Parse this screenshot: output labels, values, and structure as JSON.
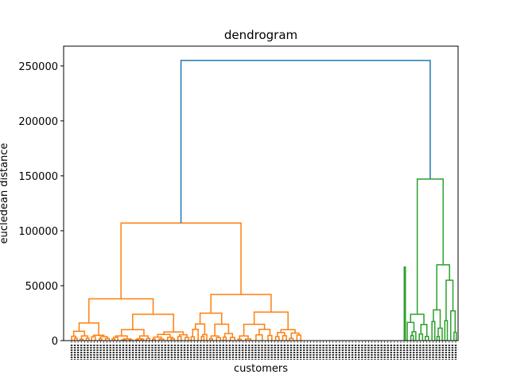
{
  "chart_data": {
    "type": "dendrogram",
    "title": "dendrogram",
    "xlabel": "customers",
    "ylabel": "eucledean distance",
    "ylim": [
      0,
      268000
    ],
    "yticks": [
      0,
      50000,
      100000,
      150000,
      200000,
      250000
    ],
    "ytick_labels": [
      "0",
      "50000",
      "100000",
      "150000",
      "200000",
      "250000"
    ],
    "grid": false,
    "colors": {
      "left_cluster": "#ff7f0e",
      "right_cluster": "#2ca02c",
      "root": "#1f77b4"
    },
    "top_merges": [
      {
        "name": "root",
        "height": 255000,
        "color": "#1f77b4"
      },
      {
        "name": "orange-cluster",
        "height": 107000,
        "color": "#ff7f0e"
      },
      {
        "name": "green-cluster",
        "height": 147000,
        "color": "#2ca02c"
      },
      {
        "name": "orange-left",
        "height": 38000,
        "color": "#ff7f0e"
      },
      {
        "name": "orange-right",
        "height": 42000,
        "color": "#ff7f0e"
      },
      {
        "name": "green-right",
        "height": 69000,
        "color": "#2ca02c"
      }
    ]
  }
}
